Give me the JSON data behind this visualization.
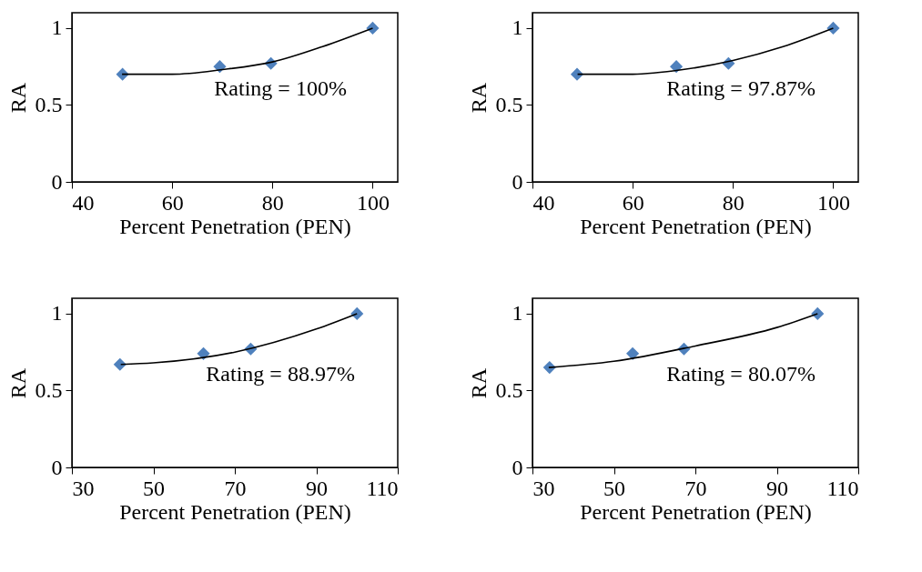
{
  "chart_data": [
    {
      "type": "scatter",
      "xlabel": "Percent Penetration (PEN)",
      "ylabel": "RA",
      "xlim": [
        40,
        105
      ],
      "xticks": [
        40,
        60,
        80,
        100
      ],
      "ylim": [
        0,
        1.1
      ],
      "yticks": [
        0,
        0.5,
        1
      ],
      "grid": false,
      "annotations": [
        "Rating = 100%"
      ],
      "series": [
        {
          "marker": "diamond",
          "color": "#4f81bd",
          "x": [
            50.1,
            69.5,
            79.7,
            100
          ],
          "values": [
            0.7,
            0.75,
            0.77,
            1
          ]
        },
        {
          "type": "line",
          "color": "#000000",
          "x": [
            50,
            60,
            70,
            80,
            90,
            100
          ],
          "values": [
            0.7,
            0.7,
            0.73,
            0.78,
            0.88,
            1
          ]
        }
      ]
    },
    {
      "type": "scatter",
      "xlabel": "Percent Penetration (PEN)",
      "ylabel": "RA",
      "xlim": [
        40,
        105
      ],
      "xticks": [
        40,
        60,
        80,
        100
      ],
      "ylim": [
        0,
        1.1
      ],
      "yticks": [
        0,
        0.5,
        1
      ],
      "grid": false,
      "annotations": [
        "Rating = 97.87%"
      ],
      "series": [
        {
          "marker": "diamond",
          "color": "#4f81bd",
          "x": [
            48.9,
            68.7,
            79.1,
            100
          ],
          "values": [
            0.7,
            0.75,
            0.77,
            1
          ]
        },
        {
          "type": "line",
          "color": "#000000",
          "x": [
            49,
            60,
            70,
            80,
            90,
            100
          ],
          "values": [
            0.7,
            0.7,
            0.73,
            0.79,
            0.88,
            1
          ]
        }
      ]
    },
    {
      "type": "scatter",
      "xlabel": "Percent Penetration (PEN)",
      "ylabel": "RA",
      "xlim": [
        30,
        110
      ],
      "xticks": [
        30,
        50,
        70,
        90,
        110
      ],
      "ylim": [
        0,
        1.1
      ],
      "yticks": [
        0,
        0.5,
        1
      ],
      "grid": false,
      "annotations": [
        "Rating = 88.97%"
      ],
      "series": [
        {
          "marker": "diamond",
          "color": "#4f81bd",
          "x": [
            41.8,
            62.3,
            73.9,
            100
          ],
          "values": [
            0.67,
            0.74,
            0.77,
            1
          ]
        },
        {
          "type": "line",
          "color": "#000000",
          "x": [
            42,
            50,
            70,
            90,
            100
          ],
          "values": [
            0.67,
            0.68,
            0.75,
            0.9,
            1
          ]
        }
      ]
    },
    {
      "type": "scatter",
      "xlabel": "Percent Penetration (PEN)",
      "ylabel": "RA",
      "xlim": [
        30,
        110
      ],
      "xticks": [
        30,
        50,
        70,
        90,
        110
      ],
      "ylim": [
        0,
        1.1
      ],
      "yticks": [
        0,
        0.5,
        1
      ],
      "grid": false,
      "annotations": [
        "Rating = 80.07%"
      ],
      "series": [
        {
          "marker": "diamond",
          "color": "#4f81bd",
          "x": [
            34.2,
            54.6,
            67.2,
            100
          ],
          "values": [
            0.65,
            0.74,
            0.77,
            1
          ]
        },
        {
          "type": "line",
          "color": "#000000",
          "x": [
            34,
            50,
            70,
            90,
            100
          ],
          "values": [
            0.65,
            0.69,
            0.79,
            0.91,
            1
          ]
        }
      ]
    }
  ]
}
